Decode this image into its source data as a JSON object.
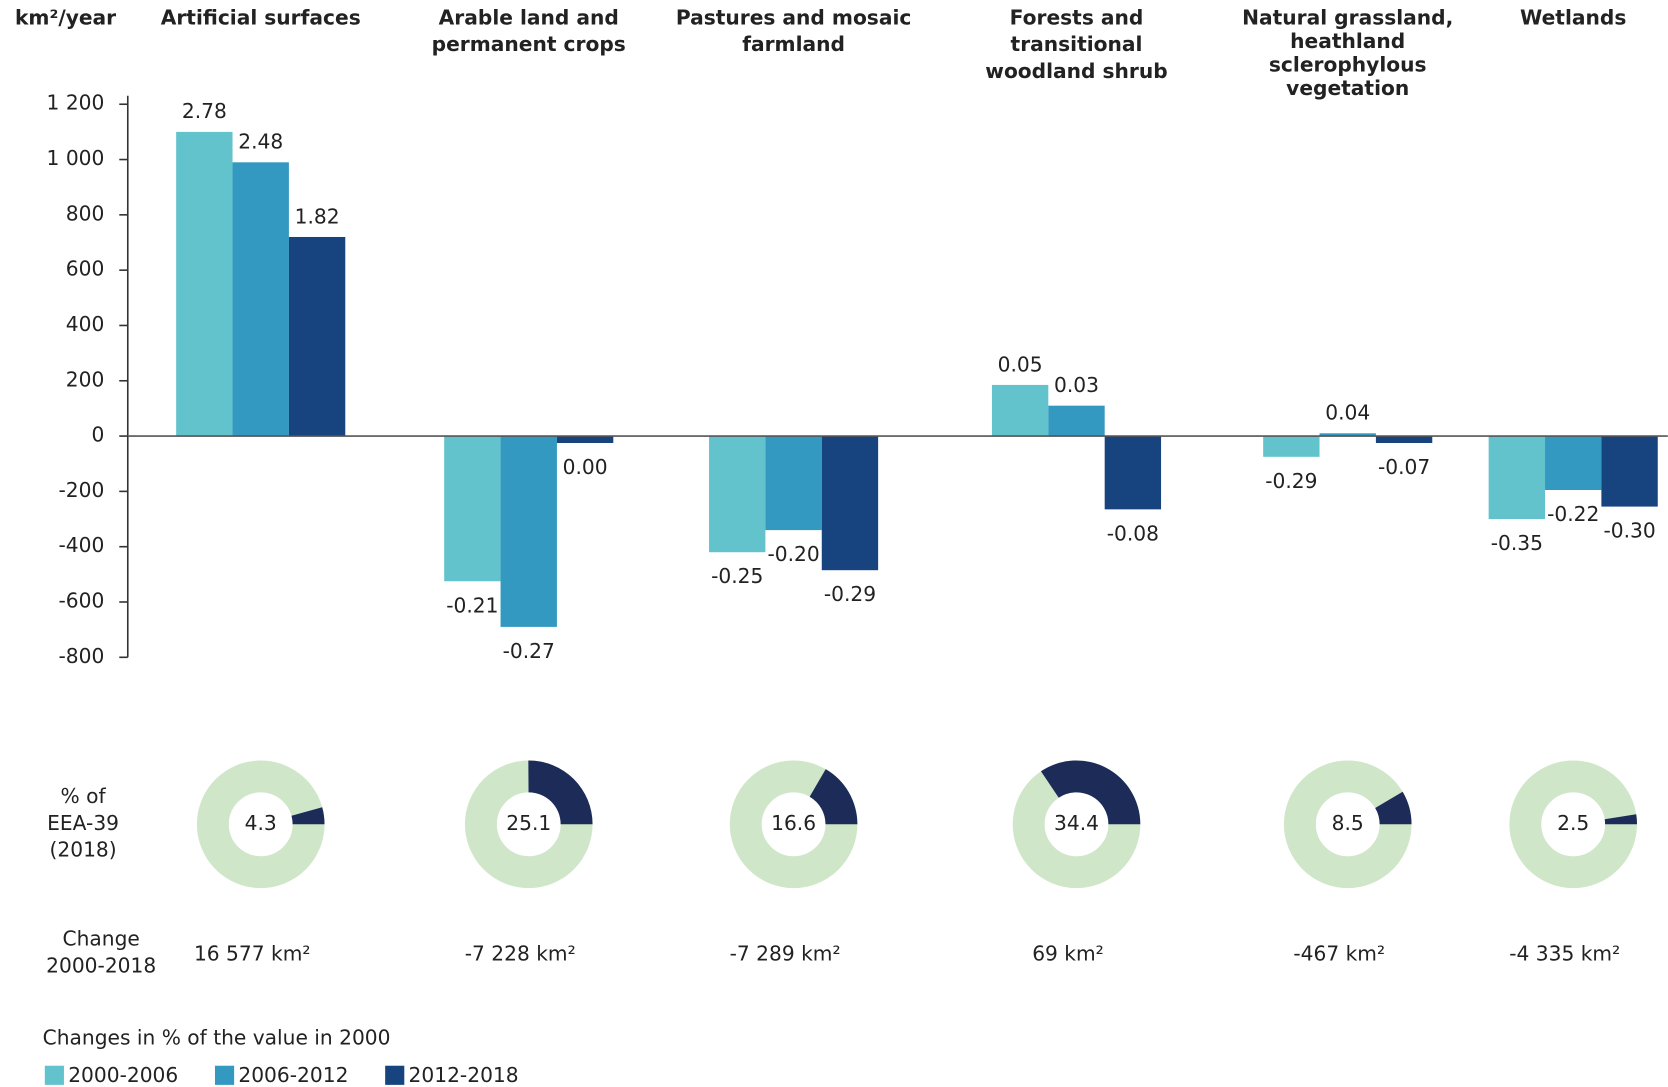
{
  "chart_data": {
    "type": "bar",
    "y_label": "km²/year",
    "categories": [
      [
        "Artificial surfaces"
      ],
      [
        "Arable land and",
        "permanent crops"
      ],
      [
        "Pastures and mosaic",
        "farmland"
      ],
      [
        "Forests and",
        "transitional",
        "woodland shrub"
      ],
      [
        "Natural grassland,",
        "heathland",
        "sclerophylous",
        "vegetation"
      ],
      [
        "Wetlands"
      ]
    ],
    "series": [
      {
        "name": "2000-2006",
        "color": "#62c3cc",
        "values": [
          1100,
          -525,
          -420,
          185,
          -75,
          -300
        ],
        "change_labels": [
          "2.78",
          "-0.21",
          "-0.25",
          "0.05",
          "-0.29",
          "-0.35"
        ]
      },
      {
        "name": "2006-2012",
        "color": "#3399c1",
        "values": [
          990,
          -690,
          -340,
          110,
          10,
          -195
        ],
        "change_labels": [
          "2.48",
          "-0.27",
          "-0.20",
          "0.03",
          "0.04",
          "-0.22"
        ]
      },
      {
        "name": "2012-2018",
        "color": "#17447f",
        "values": [
          720,
          -25,
          -485,
          -265,
          -25,
          -255
        ],
        "change_labels": [
          "1.82",
          "0.00",
          "-0.29",
          "-0.08",
          "-0.07",
          "-0.30"
        ]
      }
    ],
    "ylim": [
      -800,
      1200
    ],
    "yticks": [
      -800,
      -600,
      -400,
      -200,
      0,
      200,
      400,
      600,
      800,
      {
        "value": 1000,
        "label": "1 000"
      },
      {
        "value": 1200,
        "label": "1 200"
      }
    ],
    "shares_title": [
      "% of",
      "EEA-39",
      "(2018)"
    ],
    "shares": [
      4.3,
      25.1,
      16.6,
      34.4,
      8.5,
      2.5
    ],
    "donut_colors": [
      "#cfe6c9",
      "#1c2b58"
    ],
    "change_title": [
      "Change",
      "2000-2018"
    ],
    "changes": [
      "16 577 km²",
      "-7 228 km²",
      "-7 289 km²",
      "69 km²",
      "-467 km²",
      "-4 335 km²"
    ],
    "legend_title": "Changes in % of the value in 2000"
  }
}
